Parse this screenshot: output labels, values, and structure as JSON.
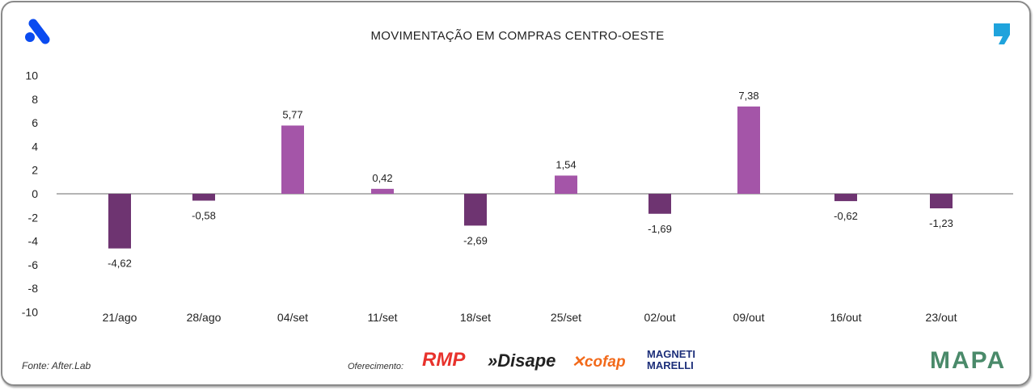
{
  "chart_data": {
    "type": "bar",
    "title": "MOVIMENTAÇÃO EM COMPRAS CENTRO-OESTE",
    "categories": [
      "21/ago",
      "28/ago",
      "04/set",
      "11/set",
      "18/set",
      "25/set",
      "02/out",
      "09/out",
      "16/out",
      "23/out"
    ],
    "values": [
      -4.62,
      -0.58,
      5.77,
      0.42,
      -2.69,
      1.54,
      -1.69,
      7.38,
      -0.62,
      -1.23
    ],
    "data_labels": [
      "-4,62",
      "-0,58",
      "5,77",
      "0,42",
      "-2,69",
      "1,54",
      "-1,69",
      "7,38",
      "-0,62",
      "-1,23"
    ],
    "ylim": [
      -10,
      10
    ],
    "yticks": [
      "10",
      "8",
      "6",
      "4",
      "2",
      "0",
      "-2",
      "-4",
      "-6",
      "-8",
      "-10"
    ],
    "grid": false,
    "colors": {
      "positive": "#a455a8",
      "negative": "#6e3471"
    }
  },
  "footer": {
    "source": "Fonte: After.Lab",
    "offered_by": "Oferecimento:",
    "sponsors": [
      "RMP",
      "Disape",
      "cofap",
      "MAGNETI MARELLI"
    ],
    "mapa": "MAPA"
  },
  "icons": {
    "left": "a-logo-icon",
    "right": "comma-icon"
  }
}
